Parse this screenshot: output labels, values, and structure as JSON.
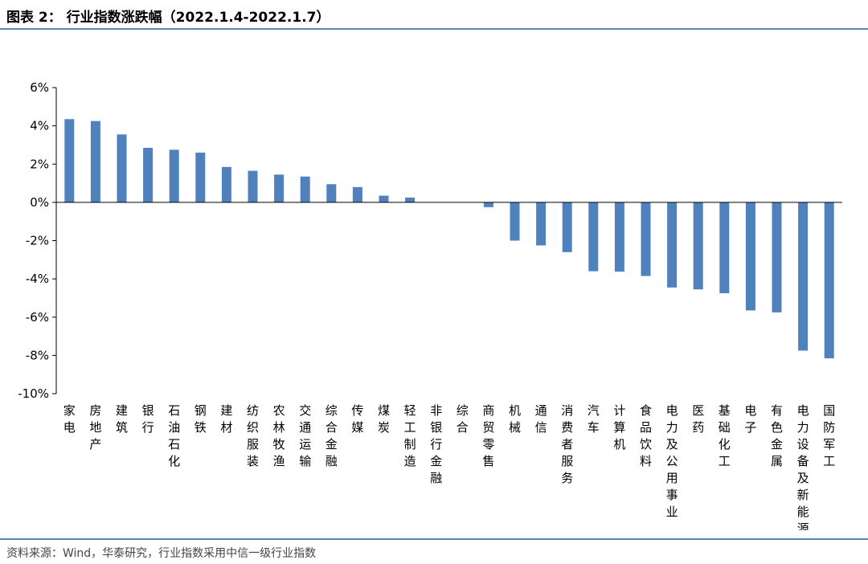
{
  "header": {
    "title": "图表 2： 行业指数涨跌幅（2022.1.4-2022.1.7）"
  },
  "footer": {
    "source": "资料来源：Wind，华泰研究，行业指数采用中信一级行业指数"
  },
  "colors": {
    "bar": "#4f81bd",
    "accent_line": "#5a84b8"
  },
  "chart_data": {
    "type": "bar",
    "title": "",
    "xlabel": "",
    "ylabel": "",
    "ylim": [
      -10,
      6
    ],
    "yticks": [
      6,
      4,
      2,
      0,
      -2,
      -4,
      -6,
      -8,
      -10
    ],
    "ytick_labels": [
      "6%",
      "4%",
      "2%",
      "0%",
      "-2%",
      "-4%",
      "-6%",
      "-8%",
      "-10%"
    ],
    "grid": false,
    "categories": [
      "家电",
      "房地产",
      "建筑",
      "银行",
      "石油石化",
      "钢铁",
      "建材",
      "纺织服装",
      "农林牧渔",
      "交通运输",
      "综合金融",
      "传媒",
      "煤炭",
      "轻工制造",
      "非银行金融",
      "综合",
      "商贸零售",
      "机械",
      "通信",
      "消费者服务",
      "汽车",
      "计算机",
      "食品饮料",
      "电力及公用事业",
      "医药",
      "基础化工",
      "电子",
      "有色金属",
      "电力设备及新能源",
      "国防军工"
    ],
    "values": [
      4.35,
      4.25,
      3.55,
      2.85,
      2.75,
      2.6,
      1.85,
      1.65,
      1.45,
      1.35,
      0.95,
      0.8,
      0.35,
      0.25,
      0.0,
      0.0,
      -0.25,
      -2.0,
      -2.25,
      -2.6,
      -3.6,
      -3.62,
      -3.85,
      -4.45,
      -4.55,
      -4.75,
      -5.65,
      -5.75,
      -7.75,
      -8.15
    ]
  }
}
